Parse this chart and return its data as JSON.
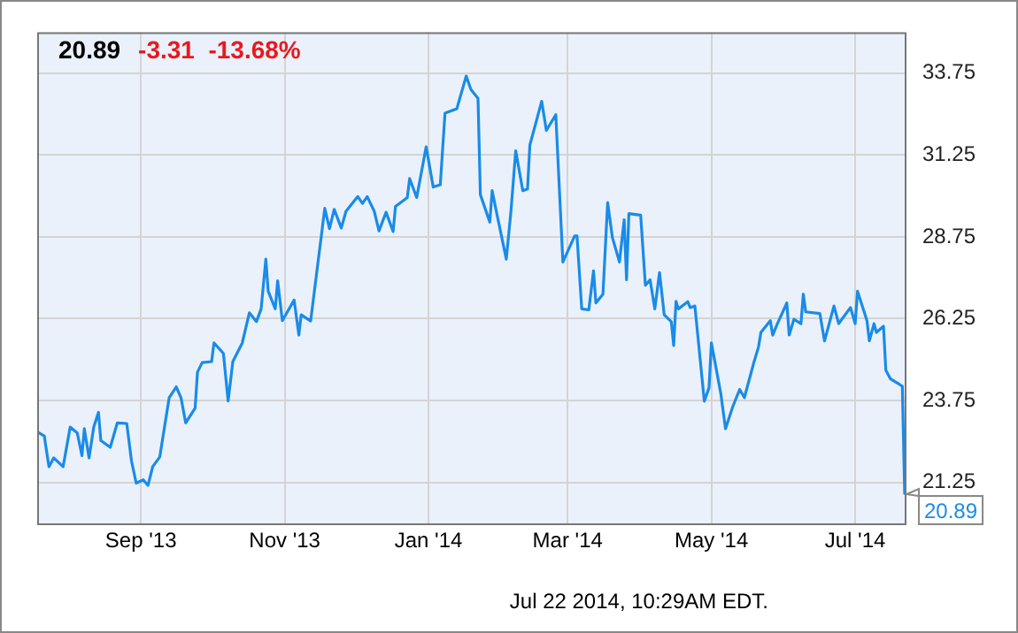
{
  "chart_data": {
    "type": "line",
    "title": "20.89",
    "subtitle": "-3.31  -13.68%",
    "annotations": [
      "Jul 22 2014, 10:29AM EDT."
    ],
    "x": [
      "2013-07-19",
      "2013-07-22",
      "2013-07-24",
      "2013-07-26",
      "2013-07-30",
      "2013-08-02",
      "2013-08-05",
      "2013-08-07",
      "2013-08-08",
      "2013-08-10",
      "2013-08-12",
      "2013-08-14",
      "2013-08-15",
      "2013-08-19",
      "2013-08-22",
      "2013-08-26",
      "2013-08-28",
      "2013-08-30",
      "2013-09-02",
      "2013-09-04",
      "2013-09-06",
      "2013-09-09",
      "2013-09-13",
      "2013-09-16",
      "2013-09-18",
      "2013-09-20",
      "2013-09-24",
      "2013-09-25",
      "2013-09-27",
      "2013-10-01",
      "2013-10-02",
      "2013-10-06",
      "2013-10-08",
      "2013-10-10",
      "2013-10-14",
      "2013-10-17",
      "2013-10-20",
      "2013-10-22",
      "2013-10-24",
      "2013-10-25",
      "2013-10-28",
      "2013-10-29",
      "2013-10-31",
      "2013-11-05",
      "2013-11-07",
      "2013-11-08",
      "2013-11-12",
      "2013-11-18",
      "2013-11-20",
      "2013-11-22",
      "2013-11-25",
      "2013-11-27",
      "2013-12-02",
      "2013-12-04",
      "2013-12-06",
      "2013-12-09",
      "2013-12-11",
      "2013-12-14",
      "2013-12-17",
      "2013-12-18",
      "2013-12-23",
      "2013-12-24",
      "2013-12-27",
      "2013-12-31",
      "2014-01-03",
      "2014-01-06",
      "2014-01-08",
      "2014-01-13",
      "2014-01-17",
      "2014-01-19",
      "2014-01-22",
      "2014-01-23",
      "2014-01-27",
      "2014-01-28",
      "2014-01-30",
      "2014-02-03",
      "2014-02-05",
      "2014-02-07",
      "2014-02-10",
      "2014-02-12",
      "2014-02-13",
      "2014-02-18",
      "2014-02-20",
      "2014-02-24",
      "2014-02-27",
      "2014-03-04",
      "2014-03-05",
      "2014-03-07",
      "2014-03-10",
      "2014-03-12",
      "2014-03-13",
      "2014-03-16",
      "2014-03-18",
      "2014-03-20",
      "2014-03-23",
      "2014-03-25",
      "2014-03-26",
      "2014-03-27",
      "2014-04-01",
      "2014-04-03",
      "2014-04-05",
      "2014-04-07",
      "2014-04-09",
      "2014-04-11",
      "2014-04-14",
      "2014-04-15",
      "2014-04-16",
      "2014-04-17",
      "2014-04-21",
      "2014-04-22",
      "2014-04-24",
      "2014-04-28",
      "2014-04-30",
      "2014-05-01",
      "2014-05-05",
      "2014-05-07",
      "2014-05-10",
      "2014-05-13",
      "2014-05-15",
      "2014-05-19",
      "2014-05-21",
      "2014-05-22",
      "2014-05-26",
      "2014-05-27",
      "2014-05-29",
      "2014-06-02",
      "2014-06-03",
      "2014-06-05",
      "2014-06-08",
      "2014-06-09",
      "2014-06-10",
      "2014-06-16",
      "2014-06-18",
      "2014-06-22",
      "2014-06-24",
      "2014-06-29",
      "2014-07-01",
      "2014-07-02",
      "2014-07-06",
      "2014-07-07",
      "2014-07-09",
      "2014-07-10",
      "2014-07-13",
      "2014-07-14",
      "2014-07-16",
      "2014-07-21",
      "2014-07-22"
    ],
    "series": [
      {
        "color": "#1a8be8",
        "values": [
          22.8,
          22.67,
          21.73,
          22.0,
          21.73,
          22.94,
          22.76,
          22.07,
          22.89,
          22.0,
          22.94,
          23.39,
          22.53,
          22.32,
          23.07,
          23.05,
          21.91,
          21.23,
          21.33,
          21.16,
          21.73,
          22.03,
          23.84,
          24.17,
          23.84,
          23.07,
          23.52,
          24.62,
          24.91,
          24.94,
          25.51,
          25.19,
          23.74,
          24.94,
          25.51,
          26.43,
          26.16,
          26.55,
          28.07,
          27.09,
          26.55,
          27.41,
          26.19,
          26.82,
          25.75,
          26.37,
          26.18,
          29.62,
          29.0,
          29.59,
          29.02,
          29.53,
          29.98,
          29.77,
          29.98,
          29.53,
          28.93,
          29.5,
          28.91,
          29.68,
          29.95,
          30.53,
          29.95,
          31.5,
          30.27,
          30.34,
          32.53,
          32.66,
          33.66,
          33.25,
          32.98,
          30.04,
          29.2,
          30.16,
          29.45,
          28.07,
          29.55,
          31.38,
          30.16,
          30.21,
          31.55,
          32.89,
          32.0,
          32.48,
          27.98,
          28.78,
          28.78,
          26.55,
          26.52,
          27.71,
          26.73,
          27.0,
          29.8,
          28.73,
          27.98,
          29.27,
          27.44,
          29.46,
          29.41,
          27.27,
          27.44,
          26.55,
          27.66,
          26.37,
          26.16,
          25.43,
          26.78,
          26.55,
          26.77,
          26.59,
          26.64,
          23.73,
          24.14,
          25.51,
          23.96,
          22.89,
          23.55,
          24.09,
          23.84,
          24.91,
          25.39,
          25.83,
          26.19,
          25.75,
          26.1,
          26.73,
          25.75,
          26.23,
          26.1,
          27.0,
          26.46,
          26.41,
          25.57,
          26.64,
          26.1,
          26.59,
          26.1,
          27.09,
          26.19,
          25.57,
          26.1,
          25.83,
          26.02,
          24.68,
          24.41,
          24.19,
          20.89
        ],
        "value_labels": [
          null,
          null,
          null,
          null,
          null,
          null,
          null,
          null,
          null,
          null,
          null,
          null,
          null,
          null,
          null,
          null,
          null,
          null,
          null,
          null,
          null,
          null,
          null,
          null,
          null,
          null,
          null,
          null,
          null,
          null,
          null,
          null,
          null,
          null,
          null,
          null,
          null,
          null,
          null,
          null,
          null,
          null,
          null,
          null,
          null,
          null,
          null,
          null,
          null,
          null,
          null,
          null,
          null,
          null,
          null,
          null,
          null,
          null,
          null,
          null,
          null,
          null,
          null,
          null,
          null,
          null,
          null,
          null,
          null,
          null,
          null,
          null,
          null,
          null,
          null,
          null,
          null,
          null,
          null,
          null,
          null,
          null,
          null,
          null,
          null,
          null,
          null,
          null,
          null,
          null,
          null,
          null,
          null,
          null,
          null,
          null,
          null,
          null,
          null,
          null,
          null,
          null,
          null,
          null,
          null,
          null,
          null,
          null,
          null,
          null,
          null,
          null,
          null,
          null,
          null,
          null,
          null,
          null,
          null,
          null,
          null,
          null,
          null,
          null,
          null,
          null,
          null,
          null,
          null,
          null,
          null,
          null,
          null,
          null,
          null,
          null,
          null,
          null,
          null,
          null,
          null,
          null,
          null,
          null,
          null,
          null,
          "20.89"
        ]
      }
    ],
    "xlim": [
      "2013-07-19",
      "2014-07-22"
    ],
    "xticks": [
      {
        "value": "2013-09-01",
        "label": "Sep '13"
      },
      {
        "value": "2013-11-01",
        "label": "Nov '13"
      },
      {
        "value": "2014-01-01",
        "label": "Jan '14"
      },
      {
        "value": "2014-03-01",
        "label": "Mar '14"
      },
      {
        "value": "2014-05-01",
        "label": "May '14"
      },
      {
        "value": "2014-07-01",
        "label": "Jul '14"
      }
    ],
    "ylim": [
      20.0,
      35.0
    ],
    "yticks": [
      21.25,
      23.75,
      26.25,
      28.75,
      31.25,
      33.75
    ],
    "grid": true,
    "marker": "none",
    "line_style": "solid",
    "legend": false
  }
}
